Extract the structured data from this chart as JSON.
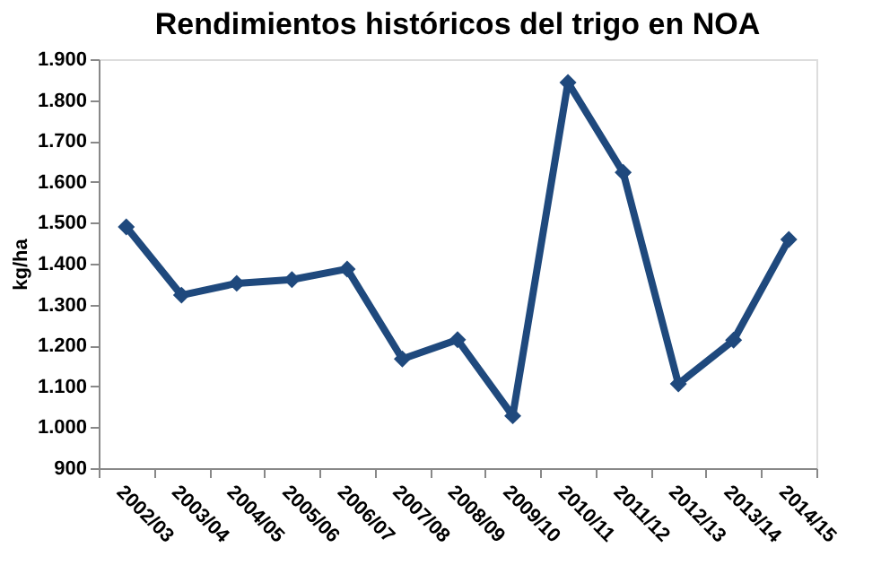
{
  "chart_data": {
    "type": "line",
    "title": "Rendimientos históricos del trigo en NOA",
    "ylabel": "kg/ha",
    "categories": [
      "2002/03",
      "2003/04",
      "2004/05",
      "2005/06",
      "2006/07",
      "2007/08",
      "2008/09",
      "2009/10",
      "2010/11",
      "2011/12",
      "2012/13",
      "2013/14",
      "2014/15"
    ],
    "series": [
      {
        "color": "#1f497d",
        "values": [
          1490,
          1323,
          1352,
          1361,
          1387,
          1167,
          1214,
          1028,
          1843,
          1623,
          1106,
          1213,
          1459
        ]
      }
    ],
    "ylim": [
      900,
      1900
    ],
    "yticks": [
      {
        "value": 900,
        "label": "900"
      },
      {
        "value": 1000,
        "label": "1.000"
      },
      {
        "value": 1100,
        "label": "1.100"
      },
      {
        "value": 1200,
        "label": "1.200"
      },
      {
        "value": 1300,
        "label": "1.300"
      },
      {
        "value": 1400,
        "label": "1.400"
      },
      {
        "value": 1500,
        "label": "1.500"
      },
      {
        "value": 1600,
        "label": "1.600"
      },
      {
        "value": 1700,
        "label": "1.700"
      },
      {
        "value": 1800,
        "label": "1.800"
      },
      {
        "value": 1900,
        "label": "1.900"
      }
    ],
    "marker": "diamond",
    "grid": false
  }
}
